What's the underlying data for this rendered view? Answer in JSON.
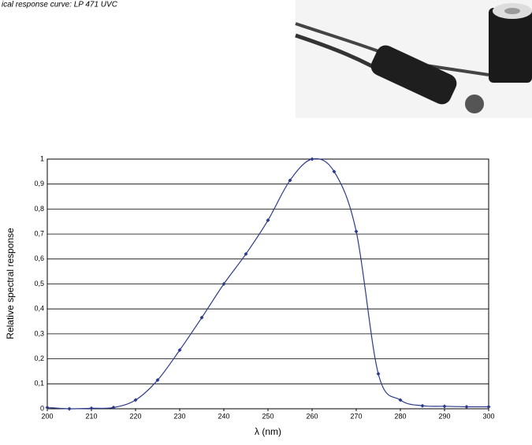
{
  "chart_data": {
    "type": "line",
    "caption": "ical response curve: LP 471 UVC",
    "xlabel": "λ (nm)",
    "ylabel": "Relative spectral response",
    "x": [
      200,
      205,
      210,
      215,
      220,
      225,
      230,
      235,
      240,
      245,
      250,
      255,
      260,
      265,
      270,
      275,
      280,
      285,
      290,
      295,
      300
    ],
    "series": [
      {
        "color": "#2b3a8c",
        "values": [
          0.005,
          0,
          0.002,
          0.005,
          0.035,
          0.115,
          0.235,
          0.365,
          0.5,
          0.62,
          0.755,
          0.915,
          1.0,
          0.95,
          0.71,
          0.14,
          0.035,
          0.012,
          0.01,
          0.008,
          0.008
        ]
      }
    ],
    "xlim": [
      200,
      300
    ],
    "xticks": [
      200,
      210,
      220,
      230,
      240,
      250,
      260,
      270,
      280,
      290,
      300
    ],
    "ylim": [
      0,
      1
    ],
    "yticks": [
      0,
      {
        "value": 0.1,
        "label": "0,1"
      },
      {
        "value": 0.2,
        "label": "0,2"
      },
      {
        "value": 0.3,
        "label": "0,3"
      },
      {
        "value": 0.4,
        "label": "0,4"
      },
      {
        "value": 0.5,
        "label": "0,5"
      },
      {
        "value": 0.6,
        "label": "0,6"
      },
      {
        "value": 0.7,
        "label": "0,7"
      },
      {
        "value": 0.8,
        "label": "0,8"
      },
      {
        "value": 0.9,
        "label": "0,9"
      },
      1
    ],
    "grid": true
  }
}
